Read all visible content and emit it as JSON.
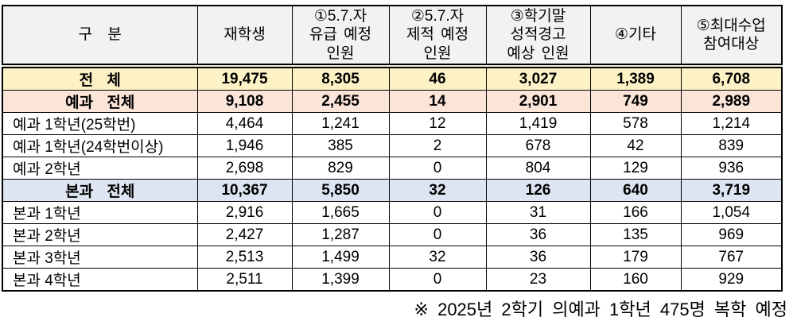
{
  "table": {
    "columns": [
      "구 분",
      "재학생",
      "①5.7.자\n유급 예정\n인원",
      "②5.7.자\n제적 예정\n인원",
      "③학기말\n성적경고\n예상 인원",
      "④기타",
      "⑤최대수업\n참여대상"
    ],
    "rows": [
      {
        "label": "전 체",
        "style": "total",
        "values": [
          "19,475",
          "8,305",
          "46",
          "3,027",
          "1,389",
          "6,708"
        ]
      },
      {
        "label": "예과 전체",
        "style": "yegwa",
        "values": [
          "9,108",
          "2,455",
          "14",
          "2,901",
          "749",
          "2,989"
        ]
      },
      {
        "label": "예과 1학년(25학번)",
        "style": "normal",
        "values": [
          "4,464",
          "1,241",
          "12",
          "1,419",
          "578",
          "1,214"
        ]
      },
      {
        "label": "예과 1학년(24학번이상)",
        "style": "normal",
        "values": [
          "1,946",
          "385",
          "2",
          "678",
          "42",
          "839"
        ]
      },
      {
        "label": "예과 2학년",
        "style": "normal",
        "values": [
          "2,698",
          "829",
          "0",
          "804",
          "129",
          "936"
        ]
      },
      {
        "label": "본과 전체",
        "style": "bongwa",
        "values": [
          "10,367",
          "5,850",
          "32",
          "126",
          "640",
          "3,719"
        ]
      },
      {
        "label": "본과 1학년",
        "style": "normal",
        "values": [
          "2,916",
          "1,665",
          "0",
          "31",
          "166",
          "1,054"
        ]
      },
      {
        "label": "본과 2학년",
        "style": "normal",
        "values": [
          "2,427",
          "1,287",
          "0",
          "36",
          "135",
          "969"
        ]
      },
      {
        "label": "본과 3학년",
        "style": "normal",
        "values": [
          "2,513",
          "1,499",
          "32",
          "36",
          "179",
          "767"
        ]
      },
      {
        "label": "본과 4학년",
        "style": "normal",
        "values": [
          "2,511",
          "1,399",
          "0",
          "23",
          "160",
          "929"
        ]
      }
    ]
  },
  "footnote": "※ 2025년 2학기 의예과 1학년 475명 복학 예정",
  "colors": {
    "header_bg": "#f2f2f2",
    "total_row_bg": "#fcf2c6",
    "yegwa_row_bg": "#fbe4d8",
    "bongwa_row_bg": "#dce5f1",
    "border": "#000000"
  }
}
